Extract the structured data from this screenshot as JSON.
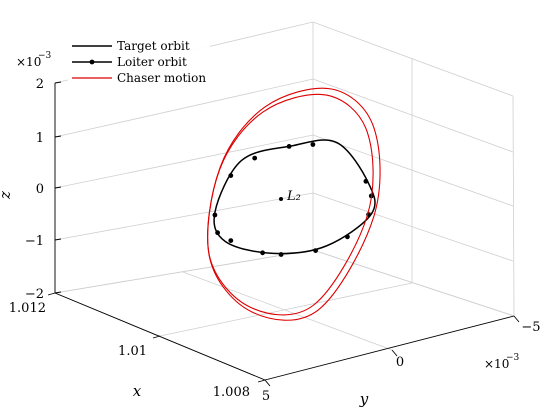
{
  "chart_data": {
    "type": "line",
    "title": "",
    "xlabel": "x",
    "ylabel": "y",
    "zlabel": "z",
    "z_multiplier": "×10",
    "z_exponent": "−3",
    "y_multiplier": "×10",
    "y_exponent": "−3",
    "xlim": [
      1.008,
      1.012
    ],
    "ylim": [
      -0.005,
      0.005
    ],
    "zlim": [
      -0.002,
      0.002
    ],
    "x_ticks": [
      "1.012",
      "1.01",
      "1.008"
    ],
    "y_ticks": [
      "5",
      "0",
      "−5"
    ],
    "z_ticks": [
      "2",
      "1",
      "0",
      "−1",
      "−2"
    ],
    "grid": true,
    "legend_position": "top-left",
    "annotation": "L₂",
    "series": [
      {
        "name": "Target orbit",
        "color": "#000000",
        "marker": "none",
        "style": "line",
        "points": [
          {
            "y_e3": 2.4,
            "z_e3": 0.95
          },
          {
            "y_e3": 0.5,
            "z_e3": 1.05
          },
          {
            "y_e3": -1.2,
            "z_e3": 0.95
          },
          {
            "y_e3": -2.4,
            "z_e3": 0.05
          },
          {
            "y_e3": -2.5,
            "z_e3": -0.55
          },
          {
            "y_e3": -0.8,
            "z_e3": -1.0
          },
          {
            "y_e3": 1.2,
            "z_e3": -0.95
          },
          {
            "y_e3": 3.0,
            "z_e3": -0.55
          },
          {
            "y_e3": 3.4,
            "z_e3": 0.05
          }
        ]
      },
      {
        "name": "Loiter orbit",
        "color": "#000000",
        "marker": "dot",
        "style": "line-markers",
        "points": [
          {
            "y_e3": 2.8,
            "z_e3": 0.7
          },
          {
            "y_e3": 1.9,
            "z_e3": 0.95
          },
          {
            "y_e3": 0.6,
            "z_e3": 1.05
          },
          {
            "y_e3": -0.3,
            "z_e3": 1.0
          },
          {
            "y_e3": -2.3,
            "z_e3": 0.1
          },
          {
            "y_e3": -2.5,
            "z_e3": -0.2
          },
          {
            "y_e3": -2.4,
            "z_e3": -0.55
          },
          {
            "y_e3": -1.6,
            "z_e3": -0.9
          },
          {
            "y_e3": -0.4,
            "z_e3": -1.05
          },
          {
            "y_e3": 0.9,
            "z_e3": -1.0
          },
          {
            "y_e3": 1.6,
            "z_e3": -0.9
          },
          {
            "y_e3": 2.8,
            "z_e3": -0.55
          },
          {
            "y_e3": 3.3,
            "z_e3": -0.35
          },
          {
            "y_e3": 3.4,
            "z_e3": 0.0
          }
        ]
      },
      {
        "name": "Chaser motion",
        "color": "#dd0000",
        "marker": "none",
        "style": "line",
        "points": [
          {
            "y_e3": -2.6,
            "z_e3": 1.1
          },
          {
            "y_e3": -1.0,
            "z_e3": 2.0
          },
          {
            "y_e3": 1.5,
            "z_e3": 1.9
          },
          {
            "y_e3": 3.2,
            "z_e3": 0.9
          },
          {
            "y_e3": 3.6,
            "z_e3": -0.8
          },
          {
            "y_e3": 2.0,
            "z_e3": -2.0
          },
          {
            "y_e3": -0.5,
            "z_e3": -2.2
          },
          {
            "y_e3": -2.6,
            "z_e3": -0.6
          }
        ]
      }
    ]
  }
}
